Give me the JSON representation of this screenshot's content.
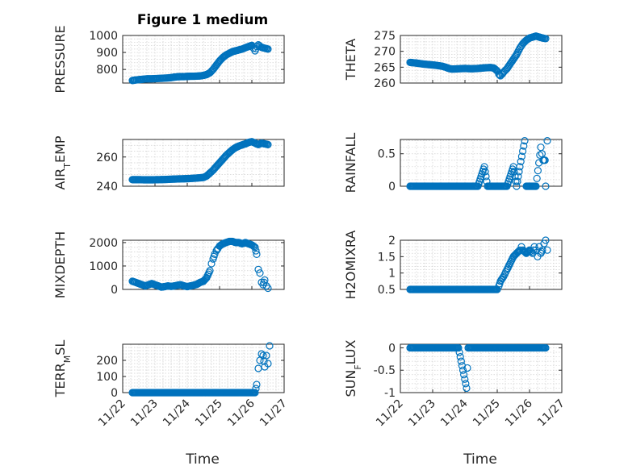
{
  "figure_title": "Figure 1 medium",
  "chart_data": [
    {
      "type": "scatter",
      "ylabel": "PRESSURE",
      "ylim": [
        720,
        1000
      ],
      "yticks": [
        800,
        900,
        1000
      ],
      "xlim": [
        0,
        5
      ],
      "points": [
        [
          0.3,
          735
        ],
        [
          0.4,
          738
        ],
        [
          0.5,
          740
        ],
        [
          0.6,
          742
        ],
        [
          0.7,
          744
        ],
        [
          0.8,
          745
        ],
        [
          0.9,
          745
        ],
        [
          1.0,
          746
        ],
        [
          1.1,
          747
        ],
        [
          1.2,
          748
        ],
        [
          1.3,
          749
        ],
        [
          1.4,
          750
        ],
        [
          1.5,
          752
        ],
        [
          1.6,
          755
        ],
        [
          1.7,
          757
        ],
        [
          1.8,
          758
        ],
        [
          1.9,
          758
        ],
        [
          2.0,
          759
        ],
        [
          2.1,
          760
        ],
        [
          2.2,
          760
        ],
        [
          2.3,
          761
        ],
        [
          2.4,
          762
        ],
        [
          2.5,
          765
        ],
        [
          2.6,
          770
        ],
        [
          2.7,
          780
        ],
        [
          2.8,
          800
        ],
        [
          2.9,
          825
        ],
        [
          3.0,
          850
        ],
        [
          3.1,
          870
        ],
        [
          3.2,
          885
        ],
        [
          3.3,
          895
        ],
        [
          3.4,
          905
        ],
        [
          3.5,
          910
        ],
        [
          3.6,
          915
        ],
        [
          3.7,
          920
        ],
        [
          3.8,
          928
        ],
        [
          3.9,
          935
        ],
        [
          4.0,
          942
        ],
        [
          4.05,
          925
        ],
        [
          4.1,
          910
        ],
        [
          4.15,
          935
        ],
        [
          4.2,
          945
        ],
        [
          4.3,
          930
        ],
        [
          4.4,
          925
        ],
        [
          4.5,
          920
        ]
      ],
      "markers": [
        [
          0.3,
          0.55
        ],
        [
          0.55,
          2.45
        ],
        [
          2.45,
          2.75
        ],
        [
          2.75,
          3.3
        ],
        [
          3.3,
          4.2
        ]
      ]
    },
    {
      "type": "scatter",
      "ylabel": "THETA",
      "ylim": [
        260,
        275
      ],
      "yticks": [
        260,
        265,
        270,
        275
      ],
      "xlim": [
        0,
        5
      ],
      "points": [
        [
          0.3,
          266.5
        ],
        [
          0.5,
          266.3
        ],
        [
          0.7,
          266.0
        ],
        [
          0.9,
          265.8
        ],
        [
          1.1,
          265.6
        ],
        [
          1.3,
          265.3
        ],
        [
          1.4,
          265.0
        ],
        [
          1.5,
          264.6
        ],
        [
          1.6,
          264.4
        ],
        [
          1.8,
          264.5
        ],
        [
          2.0,
          264.6
        ],
        [
          2.2,
          264.5
        ],
        [
          2.4,
          264.6
        ],
        [
          2.6,
          264.8
        ],
        [
          2.8,
          264.9
        ],
        [
          2.9,
          264.7
        ],
        [
          3.0,
          263.8
        ],
        [
          3.05,
          262.8
        ],
        [
          3.1,
          262.3
        ],
        [
          3.15,
          262.8
        ],
        [
          3.2,
          263.5
        ],
        [
          3.3,
          264.5
        ],
        [
          3.4,
          266.0
        ],
        [
          3.5,
          267.5
        ],
        [
          3.6,
          269.0
        ],
        [
          3.7,
          271.0
        ],
        [
          3.8,
          272.5
        ],
        [
          3.9,
          273.5
        ],
        [
          4.0,
          274.2
        ],
        [
          4.1,
          274.5
        ],
        [
          4.2,
          274.8
        ],
        [
          4.3,
          274.5
        ],
        [
          4.4,
          274.2
        ],
        [
          4.5,
          274.0
        ]
      ]
    },
    {
      "type": "scatter",
      "ylabel": "AIR_TEMP",
      "ylim": [
        240,
        272
      ],
      "yticks": [
        240,
        260
      ],
      "xlim": [
        0,
        5
      ],
      "points": [
        [
          0.3,
          244.5
        ],
        [
          0.5,
          244.5
        ],
        [
          0.7,
          244.4
        ],
        [
          0.9,
          244.4
        ],
        [
          1.1,
          244.5
        ],
        [
          1.3,
          244.6
        ],
        [
          1.5,
          244.8
        ],
        [
          1.7,
          245.0
        ],
        [
          1.9,
          245.1
        ],
        [
          2.1,
          245.3
        ],
        [
          2.3,
          245.6
        ],
        [
          2.5,
          246.0
        ],
        [
          2.6,
          247.0
        ],
        [
          2.7,
          249.0
        ],
        [
          2.8,
          251.0
        ],
        [
          2.9,
          253.5
        ],
        [
          3.0,
          256.0
        ],
        [
          3.1,
          258.5
        ],
        [
          3.2,
          261.0
        ],
        [
          3.3,
          263.0
        ],
        [
          3.4,
          265.0
        ],
        [
          3.5,
          266.5
        ],
        [
          3.6,
          267.5
        ],
        [
          3.7,
          268.3
        ],
        [
          3.8,
          269.0
        ],
        [
          3.9,
          270.0
        ],
        [
          4.0,
          270.5
        ],
        [
          4.1,
          269.5
        ],
        [
          4.2,
          268.5
        ],
        [
          4.3,
          269.5
        ],
        [
          4.4,
          269.0
        ],
        [
          4.5,
          268.5
        ]
      ]
    },
    {
      "type": "scatter",
      "ylabel": "RAINFALL",
      "ylim": [
        0,
        0.72
      ],
      "yticks": [
        0,
        0.5
      ],
      "xlim": [
        0,
        5
      ],
      "points": [
        [
          0.3,
          0
        ],
        [
          0.6,
          0
        ],
        [
          0.9,
          0
        ],
        [
          1.2,
          0
        ],
        [
          1.5,
          0
        ],
        [
          1.8,
          0
        ],
        [
          2.1,
          0
        ],
        [
          2.4,
          0
        ],
        [
          2.7,
          0
        ],
        [
          3.0,
          0
        ],
        [
          3.3,
          0
        ],
        [
          3.6,
          0
        ],
        [
          3.9,
          0
        ],
        [
          4.2,
          0
        ],
        [
          4.5,
          0
        ],
        [
          2.6,
          0.3
        ],
        [
          3.5,
          0.3
        ],
        [
          3.7,
          0.3
        ],
        [
          3.85,
          0.7
        ],
        [
          4.35,
          0.6
        ],
        [
          4.42,
          0.4
        ],
        [
          4.48,
          0.4
        ],
        [
          4.55,
          0.7
        ]
      ]
    },
    {
      "type": "scatter",
      "ylabel": "MIXDEPTH",
      "ylim": [
        0,
        2100
      ],
      "yticks": [
        0,
        1000,
        2000
      ],
      "xlim": [
        0,
        5
      ],
      "points": [
        [
          0.3,
          350
        ],
        [
          0.4,
          300
        ],
        [
          0.5,
          250
        ],
        [
          0.6,
          200
        ],
        [
          0.7,
          150
        ],
        [
          0.8,
          200
        ],
        [
          0.9,
          250
        ],
        [
          1.0,
          200
        ],
        [
          1.1,
          150
        ],
        [
          1.2,
          100
        ],
        [
          1.3,
          120
        ],
        [
          1.4,
          150
        ],
        [
          1.5,
          130
        ],
        [
          1.6,
          150
        ],
        [
          1.7,
          180
        ],
        [
          1.8,
          200
        ],
        [
          1.9,
          150
        ],
        [
          2.0,
          120
        ],
        [
          2.1,
          150
        ],
        [
          2.2,
          180
        ],
        [
          2.3,
          220
        ],
        [
          2.4,
          300
        ],
        [
          2.5,
          350
        ],
        [
          2.6,
          500
        ],
        [
          2.7,
          800
        ],
        [
          2.75,
          1100
        ],
        [
          2.8,
          1300
        ],
        [
          2.85,
          1500
        ],
        [
          2.9,
          1650
        ],
        [
          2.95,
          1750
        ],
        [
          3.0,
          1850
        ],
        [
          3.1,
          1950
        ],
        [
          3.2,
          2000
        ],
        [
          3.3,
          2050
        ],
        [
          3.4,
          2050
        ],
        [
          3.5,
          2000
        ],
        [
          3.6,
          2000
        ],
        [
          3.7,
          1950
        ],
        [
          3.8,
          2000
        ],
        [
          3.9,
          1950
        ],
        [
          4.0,
          1900
        ],
        [
          4.1,
          1800
        ],
        [
          4.15,
          1500
        ],
        [
          4.2,
          850
        ],
        [
          4.25,
          700
        ],
        [
          4.3,
          300
        ],
        [
          4.35,
          200
        ],
        [
          4.4,
          400
        ],
        [
          4.45,
          150
        ],
        [
          4.5,
          50
        ]
      ]
    },
    {
      "type": "scatter",
      "ylabel": "H2OMIXRA",
      "ylim": [
        0.5,
        2
      ],
      "yticks": [
        0.5,
        1,
        1.5,
        2
      ],
      "xlim": [
        0,
        5
      ],
      "points": [
        [
          0.3,
          0.5
        ],
        [
          0.6,
          0.5
        ],
        [
          0.9,
          0.5
        ],
        [
          1.2,
          0.5
        ],
        [
          1.5,
          0.5
        ],
        [
          1.8,
          0.5
        ],
        [
          2.1,
          0.5
        ],
        [
          2.4,
          0.5
        ],
        [
          2.7,
          0.5
        ],
        [
          3.0,
          0.5
        ],
        [
          3.05,
          0.6
        ],
        [
          3.1,
          0.75
        ],
        [
          3.2,
          0.9
        ],
        [
          3.3,
          1.1
        ],
        [
          3.4,
          1.3
        ],
        [
          3.5,
          1.5
        ],
        [
          3.6,
          1.6
        ],
        [
          3.7,
          1.7
        ],
        [
          3.75,
          1.8
        ],
        [
          3.8,
          1.7
        ],
        [
          3.9,
          1.6
        ],
        [
          4.0,
          1.7
        ],
        [
          4.1,
          1.6
        ],
        [
          4.15,
          1.8
        ],
        [
          4.2,
          1.7
        ],
        [
          4.25,
          1.5
        ],
        [
          4.3,
          1.8
        ],
        [
          4.35,
          1.6
        ],
        [
          4.4,
          1.7
        ],
        [
          4.45,
          1.9
        ],
        [
          4.5,
          2.0
        ],
        [
          4.55,
          1.7
        ]
      ]
    },
    {
      "type": "scatter",
      "ylabel": "TERR_MSL",
      "ylim": [
        0,
        300
      ],
      "yticks": [
        0,
        100,
        200
      ],
      "xlim": [
        0,
        5
      ],
      "points": [
        [
          0.3,
          0
        ],
        [
          0.6,
          0
        ],
        [
          0.9,
          0
        ],
        [
          1.2,
          0
        ],
        [
          1.5,
          0
        ],
        [
          1.8,
          0
        ],
        [
          2.1,
          0
        ],
        [
          2.4,
          0
        ],
        [
          2.7,
          0
        ],
        [
          3.0,
          0
        ],
        [
          3.3,
          0
        ],
        [
          3.6,
          0
        ],
        [
          3.9,
          0
        ],
        [
          4.1,
          0
        ],
        [
          4.15,
          50
        ],
        [
          4.2,
          150
        ],
        [
          4.25,
          200
        ],
        [
          4.3,
          240
        ],
        [
          4.35,
          230
        ],
        [
          4.4,
          160
        ],
        [
          4.45,
          230
        ],
        [
          4.5,
          180
        ],
        [
          4.55,
          290
        ]
      ]
    },
    {
      "type": "scatter",
      "ylabel": "SUN_FLUX",
      "ylim": [
        -1,
        0.08
      ],
      "yticks": [
        -1,
        -0.5,
        0
      ],
      "xlim": [
        0,
        5
      ],
      "points": [
        [
          0.3,
          0
        ],
        [
          0.6,
          0
        ],
        [
          0.9,
          0
        ],
        [
          1.2,
          0
        ],
        [
          1.5,
          0
        ],
        [
          1.8,
          0
        ],
        [
          2.1,
          0
        ],
        [
          2.4,
          0
        ],
        [
          2.7,
          0
        ],
        [
          3.0,
          0
        ],
        [
          3.3,
          0
        ],
        [
          3.6,
          0
        ],
        [
          3.9,
          0
        ],
        [
          4.2,
          0
        ],
        [
          4.5,
          0
        ],
        [
          2.05,
          -0.9
        ]
      ]
    }
  ],
  "xtick_labels": [
    "11/22",
    "11/23",
    "11/24",
    "11/25",
    "11/26",
    "11/27"
  ],
  "xlabel": "Time",
  "ylabel_parts": [
    {
      "main": "PRESSURE",
      "sub": ""
    },
    {
      "main": "THETA",
      "sub": ""
    },
    {
      "main": "AIR",
      "sub": "T",
      "rest": "EMP"
    },
    {
      "main": "RAINFALL",
      "sub": ""
    },
    {
      "main": "MIXDEPTH",
      "sub": ""
    },
    {
      "main": "H2OMIXRA",
      "sub": ""
    },
    {
      "main": "TERR",
      "sub": "M",
      "rest": "SL"
    },
    {
      "main": "SUN",
      "sub": "F",
      "rest": "LUX"
    }
  ],
  "colors": {
    "marker": "#0072bd",
    "axis": "#262626",
    "grid": "#d0d0d0"
  }
}
